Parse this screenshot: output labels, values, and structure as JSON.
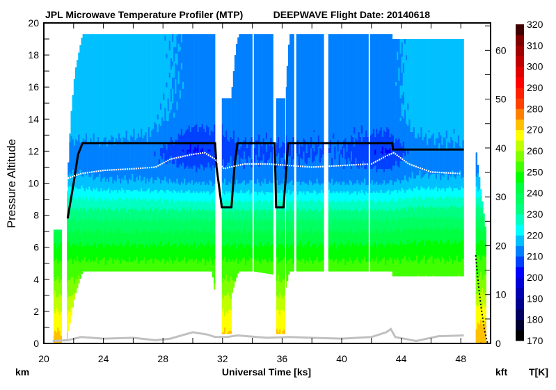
{
  "header": {
    "title_left": "JPL Microwave Temperature Profiler (MTP)",
    "title_right": "DEEPWAVE  Flight Date: 20140618"
  },
  "chart_data": {
    "type": "heatmap",
    "title": "JPL Microwave Temperature Profiler (MTP)",
    "subtitle": "DEEPWAVE  Flight Date: 20140618",
    "xlabel": "Universal Time [ks]",
    "ylabel": "Pressure Altitude",
    "y_unit_left": "km",
    "y_unit_right": "kft",
    "colorbar_label": "T[K]",
    "xlim": [
      20,
      50
    ],
    "ylim": [
      0,
      20
    ],
    "y2lim_kft": [
      0,
      65.6
    ],
    "x_ticks": [
      20,
      24,
      28,
      32,
      36,
      40,
      44,
      48
    ],
    "y_ticks": [
      0,
      2,
      4,
      6,
      8,
      10,
      12,
      14,
      16,
      18,
      20
    ],
    "y2_ticks": [
      0,
      10,
      20,
      30,
      40,
      50,
      60
    ],
    "grid": false,
    "colorbar": {
      "range": [
        170,
        320
      ],
      "step": 5,
      "ticks": [
        170,
        180,
        190,
        200,
        210,
        220,
        230,
        240,
        250,
        260,
        270,
        280,
        290,
        300,
        310,
        320
      ],
      "colors": [
        "#000000",
        "#000030",
        "#000060",
        "#000090",
        "#0000b0",
        "#0000d8",
        "#0000ff",
        "#0040ff",
        "#0080ff",
        "#00c0ff",
        "#00ffff",
        "#00ffc0",
        "#00ff80",
        "#00ff60",
        "#00ff40",
        "#00ff00",
        "#40ff00",
        "#80ff00",
        "#c0ff00",
        "#ffff00",
        "#ffc000",
        "#ff8000",
        "#ff4000",
        "#ff2000",
        "#ff0000",
        "#e00000",
        "#c00000",
        "#a00000",
        "#800000",
        "#400000"
      ]
    },
    "temperature_field": {
      "altitudes_km": [
        0,
        2,
        4,
        5,
        6,
        7,
        8,
        9,
        10,
        11,
        12,
        13,
        14,
        16,
        19.3
      ],
      "times_ks": [
        21,
        24,
        27,
        30,
        31.5,
        33,
        36,
        40,
        43,
        45,
        48,
        49.5
      ],
      "T_K": [
        [
          273,
          265,
          255,
          251,
          246,
          240,
          233,
          226,
          219,
          214,
          213,
          216,
          218,
          218,
          218
        ],
        [
          273,
          265,
          255,
          251,
          246,
          240,
          233,
          225,
          216,
          212,
          213,
          216,
          218,
          218,
          218
        ],
        [
          273,
          265,
          255,
          251,
          246,
          240,
          233,
          225,
          216,
          212,
          212,
          215,
          217,
          218,
          218
        ],
        [
          273,
          265,
          255,
          251,
          246,
          240,
          233,
          224,
          215,
          210,
          204,
          208,
          212,
          213,
          213
        ],
        [
          273,
          265,
          255,
          251,
          246,
          240,
          233,
          224,
          215,
          210,
          206,
          209,
          212,
          212,
          212
        ],
        [
          273,
          265,
          255,
          251,
          246,
          240,
          233,
          224,
          215,
          211,
          209,
          211,
          212,
          212,
          212
        ],
        [
          273,
          265,
          255,
          251,
          246,
          240,
          233,
          224,
          215,
          211,
          209,
          211,
          212,
          212,
          212
        ],
        [
          273,
          265,
          255,
          251,
          246,
          240,
          233,
          224,
          215,
          211,
          210,
          211,
          212,
          212,
          212
        ],
        [
          273,
          265,
          255,
          251,
          246,
          240,
          233,
          224,
          215,
          209,
          204,
          209,
          212,
          212,
          212
        ],
        [
          273,
          265,
          255,
          251,
          247,
          241,
          234,
          226,
          217,
          213,
          213,
          215,
          217,
          218,
          218
        ],
        [
          273,
          265,
          255,
          251,
          247,
          241,
          234,
          226,
          217,
          213,
          214,
          216,
          217,
          218,
          218
        ],
        [
          275,
          267,
          256,
          252,
          247,
          241,
          234,
          226,
          217,
          213,
          214,
          216,
          217,
          218,
          218
        ]
      ],
      "coverage": [
        {
          "start": 20.65,
          "end": 21.2,
          "top": [
            [
              20.65,
              7.1
            ],
            [
              21.2,
              7.1
            ]
          ],
          "bottom": [
            [
              20.65,
              0
            ],
            [
              21.2,
              0
            ]
          ]
        },
        {
          "start": 21.55,
          "end": 31.5,
          "top": [
            [
              21.55,
              9.5
            ],
            [
              21.8,
              14
            ],
            [
              22.1,
              17
            ],
            [
              22.6,
              19.3
            ],
            [
              31.5,
              19.3
            ]
          ],
          "bottom": [
            [
              21.55,
              0.3
            ],
            [
              21.8,
              1.5
            ],
            [
              22.1,
              3
            ],
            [
              22.6,
              4.5
            ],
            [
              31.3,
              4.5
            ],
            [
              31.5,
              3
            ]
          ]
        },
        {
          "start": 31.95,
          "end": 32.6,
          "top": [
            [
              31.95,
              15.3
            ],
            [
              32.6,
              15.3
            ]
          ],
          "bottom": [
            [
              31.95,
              0.6
            ],
            [
              32.6,
              0.6
            ]
          ]
        },
        {
          "start": 32.6,
          "end": 34.0,
          "top": [
            [
              32.6,
              15.5
            ],
            [
              32.9,
              18.5
            ],
            [
              33.1,
              19.3
            ],
            [
              34.0,
              19.3
            ]
          ],
          "bottom": [
            [
              32.6,
              3
            ],
            [
              32.9,
              4
            ],
            [
              33.1,
              4.5
            ],
            [
              34.0,
              4.5
            ]
          ]
        },
        {
          "start": 34.1,
          "end": 35.45,
          "top": [
            [
              34.1,
              19.3
            ],
            [
              35.45,
              19.3
            ]
          ],
          "bottom": [
            [
              34.1,
              4.5
            ],
            [
              35.45,
              4.3
            ]
          ]
        },
        {
          "start": 35.6,
          "end": 36.25,
          "top": [
            [
              35.6,
              15.3
            ],
            [
              36.25,
              15.3
            ]
          ],
          "bottom": [
            [
              35.6,
              0.6
            ],
            [
              36.25,
              0.6
            ]
          ]
        },
        {
          "start": 36.25,
          "end": 36.8,
          "top": [
            [
              36.25,
              16
            ],
            [
              36.5,
              19.3
            ],
            [
              36.8,
              19.3
            ]
          ],
          "bottom": [
            [
              36.25,
              3.5
            ],
            [
              36.5,
              4.5
            ],
            [
              36.8,
              4.5
            ]
          ]
        },
        {
          "start": 36.95,
          "end": 38.8,
          "top": [
            [
              36.95,
              19.3
            ],
            [
              38.8,
              19.3
            ]
          ],
          "bottom": [
            [
              36.95,
              4.5
            ],
            [
              38.8,
              4.5
            ]
          ]
        },
        {
          "start": 39.1,
          "end": 41.8,
          "top": [
            [
              39.1,
              19.3
            ],
            [
              41.8,
              19.3
            ]
          ],
          "bottom": [
            [
              39.1,
              4.5
            ],
            [
              41.8,
              4.5
            ]
          ]
        },
        {
          "start": 41.9,
          "end": 43.4,
          "top": [
            [
              41.9,
              19.3
            ],
            [
              43.4,
              19.3
            ]
          ],
          "bottom": [
            [
              41.9,
              4.5
            ],
            [
              43.4,
              4.5
            ]
          ]
        },
        {
          "start": 43.4,
          "end": 48.25,
          "top": [
            [
              43.4,
              19.0
            ],
            [
              48.25,
              19.0
            ]
          ],
          "bottom": [
            [
              43.4,
              4.2
            ],
            [
              48.25,
              4.2
            ]
          ]
        },
        {
          "start": 49.0,
          "end": 49.75,
          "top": [
            [
              49.0,
              12.3
            ],
            [
              49.3,
              10
            ],
            [
              49.5,
              8.5
            ],
            [
              49.75,
              6.5
            ]
          ],
          "bottom": [
            [
              49.0,
              0
            ],
            [
              49.75,
              0
            ]
          ]
        }
      ]
    },
    "series": [
      {
        "id": "flight_altitude",
        "color": "#000000",
        "points": [
          [
            21.6,
            7.8
          ],
          [
            22.0,
            10
          ],
          [
            22.3,
            11.8
          ],
          [
            22.6,
            12.5
          ],
          [
            31.5,
            12.5
          ],
          [
            31.6,
            11.0
          ],
          [
            31.95,
            8.5
          ],
          [
            32.6,
            8.5
          ],
          [
            32.8,
            11
          ],
          [
            33.0,
            12.5
          ],
          [
            35.5,
            12.5
          ],
          [
            35.6,
            8.5
          ],
          [
            36.1,
            8.5
          ],
          [
            36.25,
            10.5
          ],
          [
            36.4,
            12.5
          ],
          [
            43.4,
            12.5
          ],
          [
            43.45,
            12.1
          ],
          [
            48.2,
            12.1
          ]
        ]
      },
      {
        "id": "flight_descent",
        "color": "#000000",
        "points": [
          [
            49.0,
            5.5
          ],
          [
            49.2,
            3.5
          ],
          [
            49.4,
            2
          ],
          [
            49.6,
            0.8
          ],
          [
            49.8,
            0
          ]
        ]
      },
      {
        "id": "tropopause",
        "color": "#ffffff",
        "points": [
          [
            21.6,
            10.3
          ],
          [
            22.5,
            10.6
          ],
          [
            24,
            10.8
          ],
          [
            26,
            10.9
          ],
          [
            27.5,
            11.0
          ],
          [
            28.5,
            11.5
          ],
          [
            30,
            11.8
          ],
          [
            30.8,
            11.9
          ],
          [
            31.5,
            11.5
          ],
          [
            32.1,
            10.9
          ],
          [
            32.5,
            11.0
          ],
          [
            33.5,
            11.2
          ],
          [
            35,
            11.2
          ],
          [
            36.5,
            11.1
          ],
          [
            38,
            11.0
          ],
          [
            40,
            11.1
          ],
          [
            42,
            11.2
          ],
          [
            43,
            11.7
          ],
          [
            43.5,
            11.9
          ],
          [
            44.5,
            11.2
          ],
          [
            46,
            10.7
          ],
          [
            48,
            10.6
          ]
        ]
      },
      {
        "id": "ground",
        "color": "#c0c0c0",
        "points": [
          [
            20.6,
            0.15
          ],
          [
            21.6,
            0.2
          ],
          [
            22.5,
            0.4
          ],
          [
            24,
            0.3
          ],
          [
            26,
            0.35
          ],
          [
            27.5,
            0.2
          ],
          [
            28.5,
            0.3
          ],
          [
            30,
            0.7
          ],
          [
            31,
            0.55
          ],
          [
            31.5,
            0.4
          ],
          [
            32.3,
            0.4
          ],
          [
            33,
            0.5
          ],
          [
            35,
            0.35
          ],
          [
            36.5,
            0.4
          ],
          [
            38,
            0.35
          ],
          [
            40,
            0.3
          ],
          [
            42,
            0.4
          ],
          [
            43,
            0.7
          ],
          [
            43.3,
            0.9
          ],
          [
            43.6,
            0.4
          ],
          [
            45,
            0.15
          ],
          [
            46.5,
            0.45
          ],
          [
            48.2,
            0.5
          ]
        ]
      }
    ]
  }
}
